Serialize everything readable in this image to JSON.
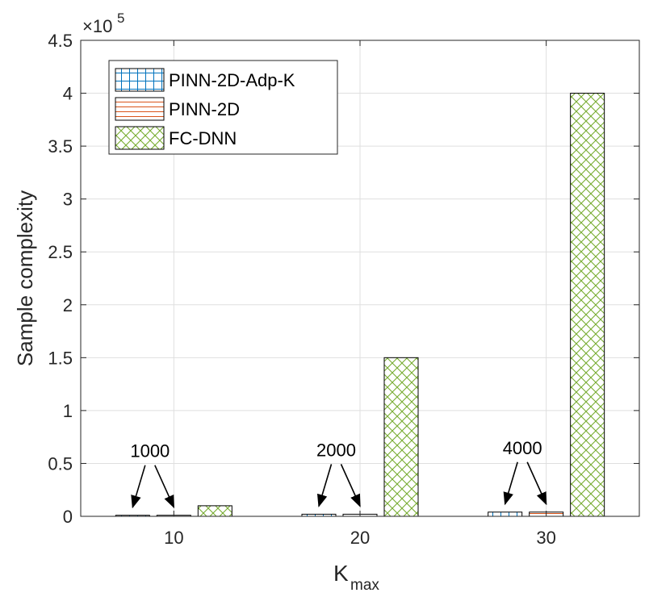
{
  "chart_data": {
    "type": "bar",
    "categories": [
      "10",
      "20",
      "30"
    ],
    "series": [
      {
        "name": "PINN-2D-Adp-K",
        "values": [
          1000,
          2000,
          4000
        ],
        "color": "#0072BD",
        "pattern": "grid"
      },
      {
        "name": "PINN-2D",
        "values": [
          1000,
          2000,
          4000
        ],
        "color": "#D95319",
        "pattern": "horizontal"
      },
      {
        "name": "FC-DNN",
        "values": [
          10000,
          150000,
          400000
        ],
        "color": "#77AC30",
        "pattern": "crosshatch"
      }
    ],
    "xlabel": "K",
    "xlabel_sub": "max",
    "ylabel": "Sample complexity",
    "ylim": [
      0,
      450000
    ],
    "yticks": [
      0,
      50000,
      100000,
      150000,
      200000,
      250000,
      300000,
      350000,
      400000,
      450000
    ],
    "ytick_labels": [
      "0",
      "0.5",
      "1",
      "1.5",
      "2",
      "2.5",
      "3",
      "3.5",
      "4",
      "4.5"
    ],
    "exponent_label": "×10",
    "exponent_power": "5",
    "grid": true,
    "legend_position": "top-left",
    "annotations": [
      {
        "text": "1000",
        "category": "10"
      },
      {
        "text": "2000",
        "category": "20"
      },
      {
        "text": "4000",
        "category": "30"
      }
    ]
  }
}
